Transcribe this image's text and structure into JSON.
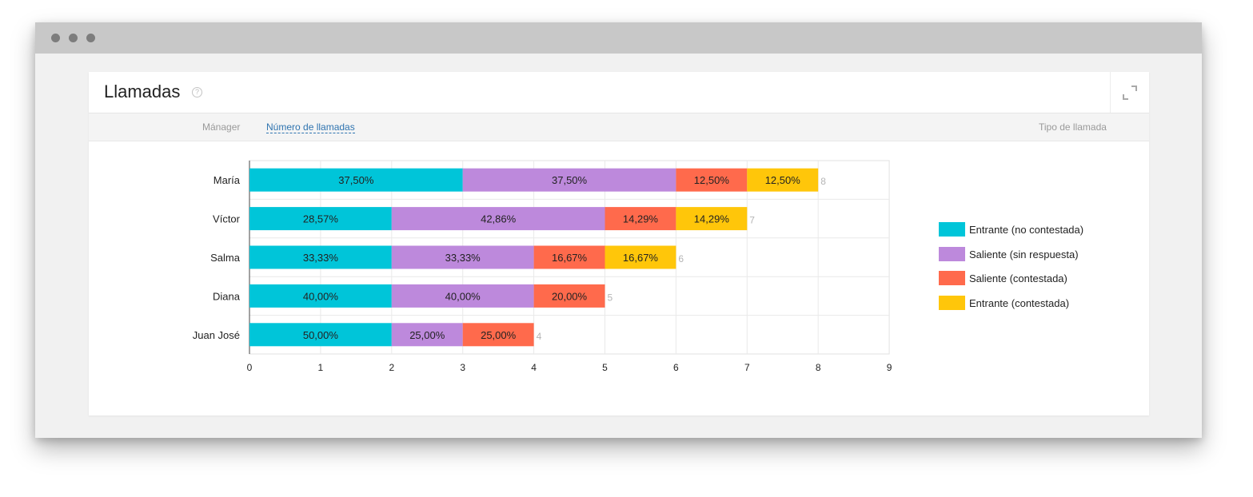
{
  "window": {
    "icons": [
      "close-dot-icon",
      "minimize-dot-icon",
      "maximize-dot-icon"
    ],
    "dot_color": "#7d7d7d"
  },
  "card": {
    "title": "Llamadas",
    "help_icon": "question-circle-icon",
    "help_glyph": "?",
    "expand_icon": "expand-icon"
  },
  "toolbar": {
    "manager_label": "Mánager",
    "calls_label": "Número de llamadas",
    "type_label": "Tipo de llamada"
  },
  "chart_data": {
    "type": "bar",
    "orientation": "horizontal",
    "stacked": true,
    "categories": [
      "María",
      "Víctor",
      "Salma",
      "Diana",
      "Juan José"
    ],
    "series": [
      {
        "name": "Entrante (no contestada)",
        "color": "#00c5d9",
        "values": [
          3,
          2,
          2,
          2,
          2
        ],
        "labels": [
          "37,50%",
          "28,57%",
          "33,33%",
          "40,00%",
          "50,00%"
        ]
      },
      {
        "name": "Saliente (sin respuesta)",
        "color": "#bd89dc",
        "values": [
          3,
          3,
          2,
          2,
          1
        ],
        "labels": [
          "37,50%",
          "42,86%",
          "33,33%",
          "40,00%",
          "25,00%"
        ]
      },
      {
        "name": "Saliente (contestada)",
        "color": "#ff6a4c",
        "values": [
          1,
          1,
          1,
          1,
          1
        ],
        "labels": [
          "12,50%",
          "14,29%",
          "16,67%",
          "20,00%",
          "25,00%"
        ]
      },
      {
        "name": "Entrante (contestada)",
        "color": "#ffc60a",
        "values": [
          1,
          1,
          1,
          0,
          0
        ],
        "labels": [
          "12,50%",
          "14,29%",
          "16,67%",
          "",
          ""
        ]
      }
    ],
    "totals": [
      8,
      7,
      6,
      5,
      4
    ],
    "xlim": [
      0,
      9
    ],
    "xticks": [
      0,
      1,
      2,
      3,
      4,
      5,
      6,
      7,
      8,
      9
    ],
    "grid": true,
    "legend": "right"
  }
}
